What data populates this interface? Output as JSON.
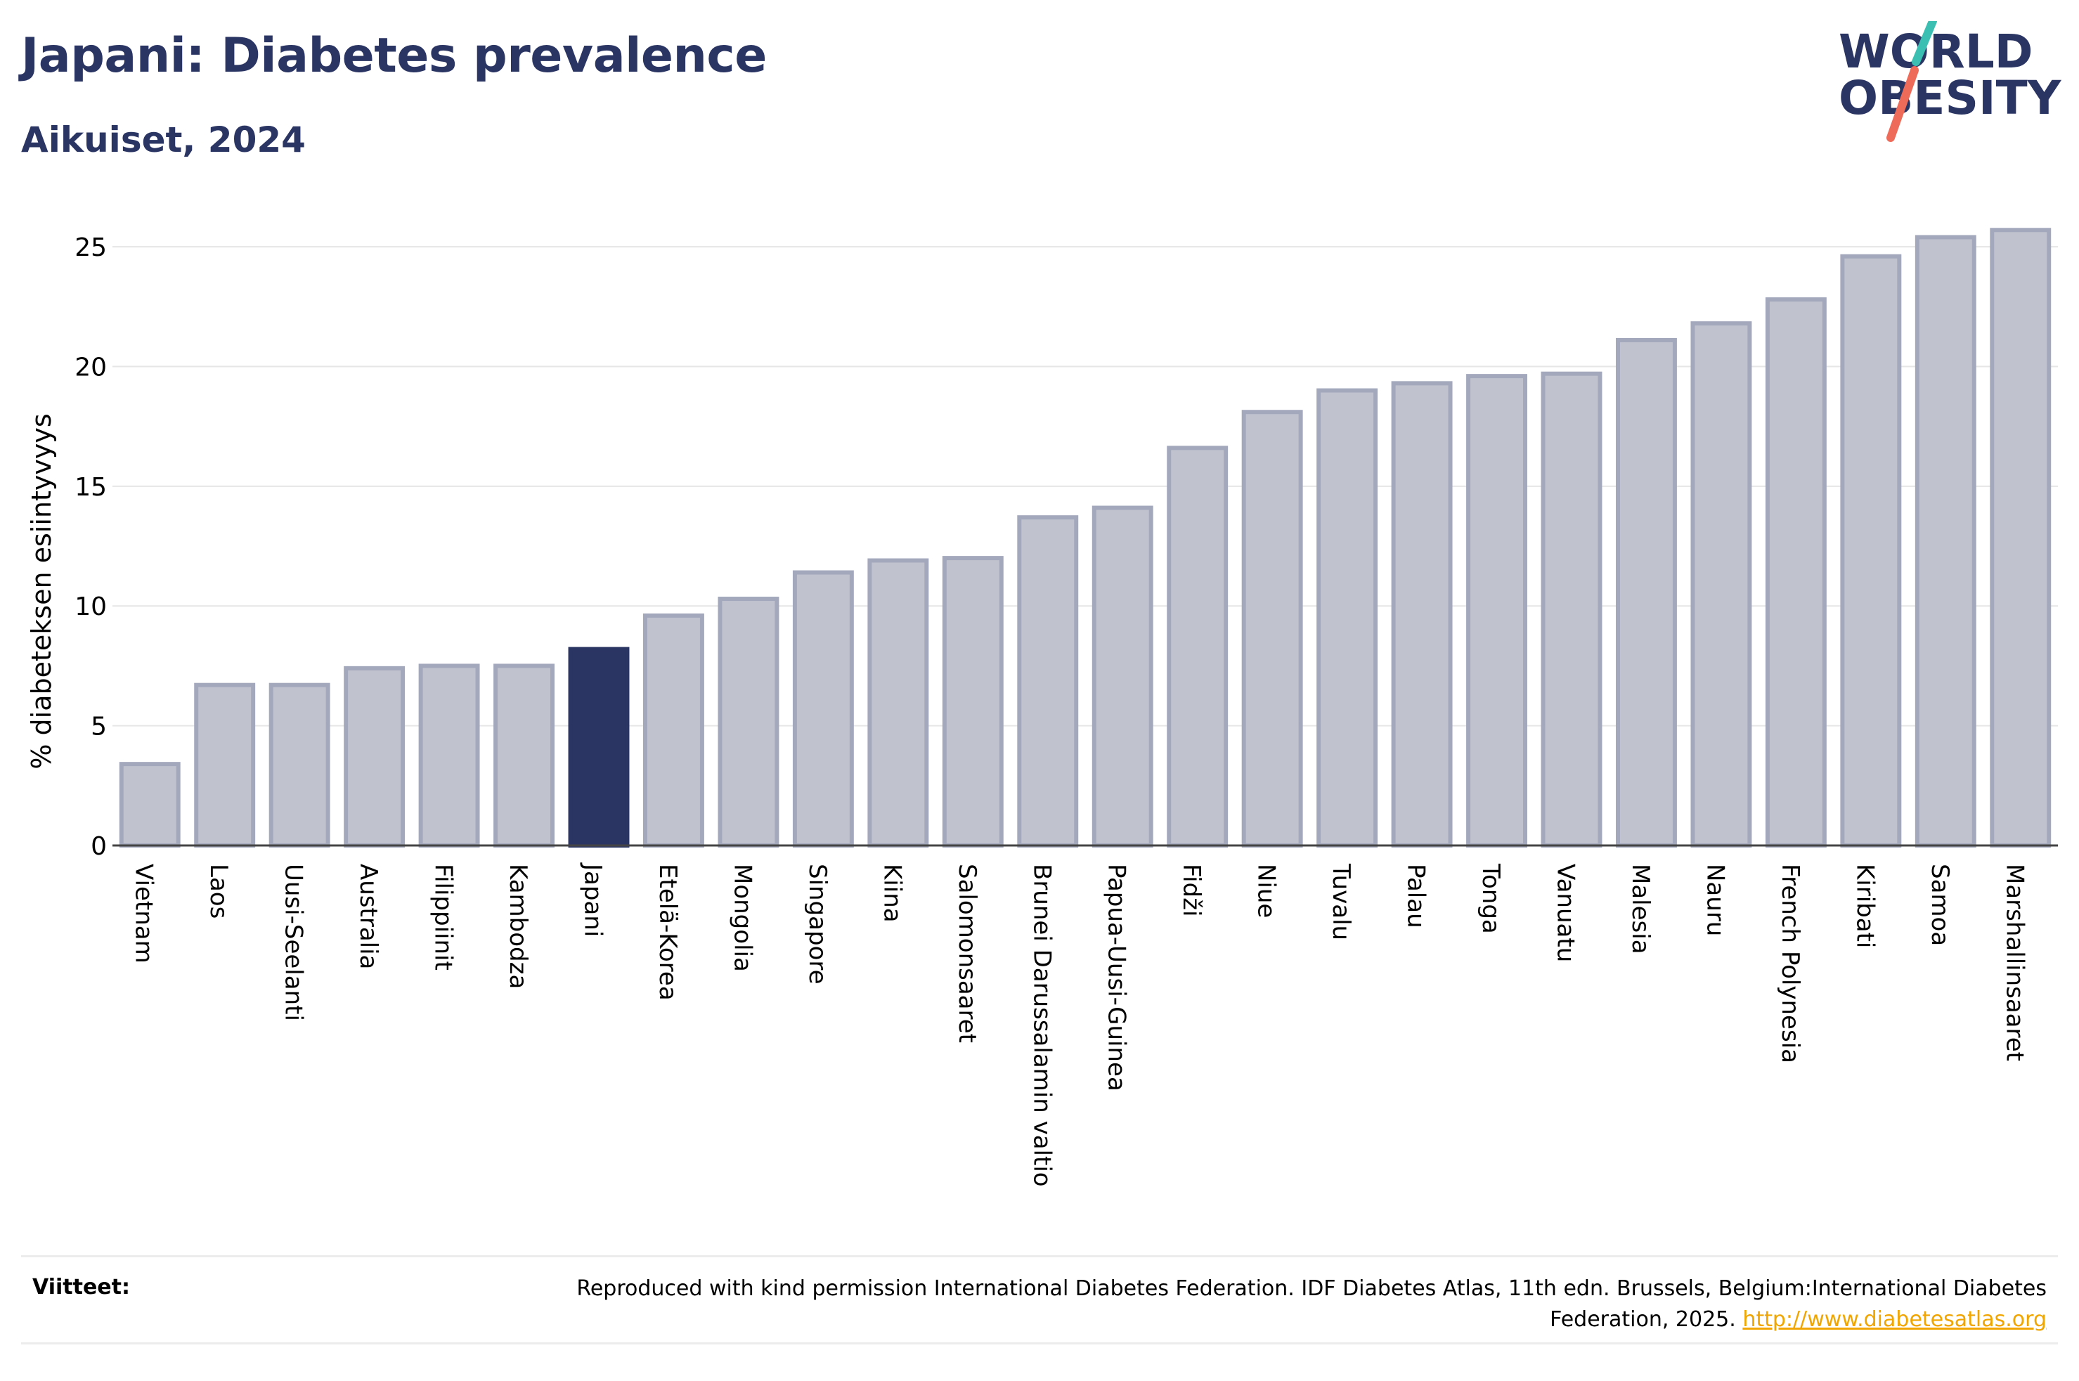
{
  "header": {
    "title": "Japani: Diabetes prevalence",
    "subtitle": "Aikuiset, 2024",
    "logo_line1": "WORLD",
    "logo_line2": "OBESITY"
  },
  "colors": {
    "highlight": "#2b3563",
    "bar_fill": "#c0c3ce",
    "bar_stroke": "#a3a8bc",
    "title": "#2b3563",
    "logo_teal": "#3bbfb2",
    "logo_coral": "#ee6b59",
    "link": "#f0a500"
  },
  "chart_data": {
    "type": "bar",
    "ylabel": "% diabeteksen esiintyvyys",
    "ylim": [
      0,
      26.5
    ],
    "yticks": [
      0,
      5,
      10,
      15,
      20,
      25
    ],
    "grid": true,
    "highlight_category": "Japani",
    "categories": [
      "Vietnam",
      "Laos",
      "Uusi-Seelanti",
      "Australia",
      "Filippiinit",
      "Kambodza",
      "Japani",
      "Etelä-Korea",
      "Mongolia",
      "Singapore",
      "Kiina",
      "Salomonsaaret",
      "Brunei Darussalamin valtio",
      "Papua-Uusi-Guinea",
      "Fidži",
      "Niue",
      "Tuvalu",
      "Palau",
      "Tonga",
      "Vanuatu",
      "Malesia",
      "Nauru",
      "French Polynesia",
      "Kiribati",
      "Samoa",
      "Marshallinsaaret"
    ],
    "values": [
      3.4,
      6.7,
      6.7,
      7.4,
      7.5,
      7.5,
      8.2,
      9.6,
      10.3,
      11.4,
      11.9,
      12.0,
      13.7,
      14.1,
      16.6,
      18.1,
      19.0,
      19.3,
      19.6,
      19.7,
      21.1,
      21.8,
      22.8,
      24.6,
      25.4,
      25.7
    ]
  },
  "footer": {
    "refs_label": "Viitteet:",
    "refs_text": "Reproduced with kind permission International Diabetes Federation. IDF Diabetes Atlas, 11th edn. Brussels, Belgium:International Diabetes Federation, 2025.",
    "refs_link": "http://www.diabetesatlas.org"
  }
}
